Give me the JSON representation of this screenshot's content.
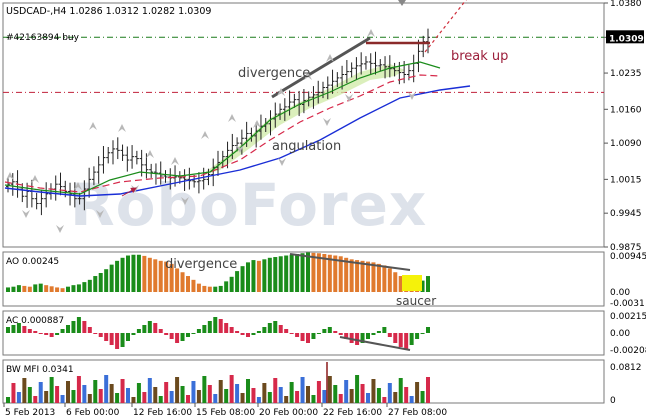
{
  "main": {
    "symbol_header": "USDCAD-,H4  1.0286 1.0312 1.0282 1.0309",
    "order_label": "#42163894 buy",
    "watermark": "RoboForex",
    "price_badge": "1.0309",
    "annotations": {
      "divergence": "divergence",
      "angulation": "angulation",
      "break_up": "break up"
    },
    "y_ticks": [
      "1.0380",
      "1.0309",
      "1.0235",
      "1.0160",
      "1.0090",
      "1.0015",
      "0.9945",
      "0.9875"
    ],
    "y_range": [
      0.9875,
      1.038
    ],
    "level_price": 1.0309,
    "stop_price": 1.0195
  },
  "ao": {
    "label": "AO 0.00245",
    "y_ticks": [
      "0.00945",
      "0.00",
      "-0.0031"
    ],
    "annotations": {
      "divergence": "divergence",
      "saucer": "saucer"
    }
  },
  "ac": {
    "label": "AC 0.000887",
    "y_ticks": [
      "0.00215",
      "0.00",
      "-0.00208"
    ]
  },
  "mfi": {
    "label": "BW MFI 0.0341",
    "y_ticks": [
      "0.0812",
      "0"
    ]
  },
  "x_ticks": [
    "5 Feb 2013",
    "6 Feb 00:00",
    "12 Feb 16:00",
    "15 Feb 08:00",
    "20 Feb 00:00",
    "22 Feb 16:00",
    "27 Feb 08:00"
  ],
  "colors": {
    "green": "#1a8c1a",
    "orange": "#e07a2e",
    "red": "#d6294a",
    "blue": "#1a2ed6",
    "yellow": "#f5f20a"
  },
  "chart_data": {
    "type": "candlestick",
    "y_range": [
      0.9875,
      1.038
    ],
    "close": [
      1.0005,
      1.001,
      0.9995,
      0.998,
      0.999,
      0.9975,
      0.9965,
      0.9975,
      0.9985,
      0.9995,
      1.0005,
      1.0,
      0.999,
      0.9985,
      0.9975,
      0.9975,
      0.9995,
      1.0015,
      1.003,
      1.0045,
      1.006,
      1.007,
      1.0078,
      1.0075,
      1.0065,
      1.0055,
      1.0062,
      1.0058,
      1.0045,
      1.0035,
      1.003,
      1.0028,
      1.0022,
      1.002,
      1.0018,
      1.002,
      1.0018,
      1.0015,
      1.0012,
      1.001,
      1.0012,
      1.0015,
      1.0025,
      1.004,
      1.005,
      1.0062,
      1.0075,
      1.0085,
      1.009,
      1.01,
      1.011,
      1.0105,
      1.0115,
      1.0125,
      1.013,
      1.014,
      1.015,
      1.016,
      1.0165,
      1.0175,
      1.018,
      1.017,
      1.0178,
      1.0185,
      1.019,
      1.0195,
      1.0205,
      1.021,
      1.0218,
      1.0225,
      1.0232,
      1.0238,
      1.0245,
      1.025,
      1.0254,
      1.0258,
      1.0255,
      1.025,
      1.0252,
      1.0248,
      1.0244,
      1.024,
      1.0236,
      1.0232,
      1.024,
      1.0255,
      1.028,
      1.03,
      1.0309
    ]
  }
}
